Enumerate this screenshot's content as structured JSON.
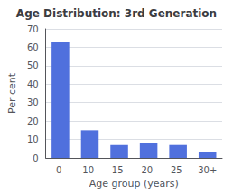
{
  "chart_data": {
    "type": "bar",
    "title": "Age Distribution: 3rd Generation",
    "xlabel": "Age group (years)",
    "ylabel": "Per cent",
    "categories": [
      "0-",
      "10-",
      "15-",
      "20-",
      "25-",
      "30+"
    ],
    "values": [
      63,
      15,
      7,
      8,
      7,
      3
    ],
    "ylim": [
      0,
      70
    ],
    "yticks": [
      0,
      10,
      20,
      30,
      40,
      50,
      60,
      70
    ],
    "grid": true
  }
}
